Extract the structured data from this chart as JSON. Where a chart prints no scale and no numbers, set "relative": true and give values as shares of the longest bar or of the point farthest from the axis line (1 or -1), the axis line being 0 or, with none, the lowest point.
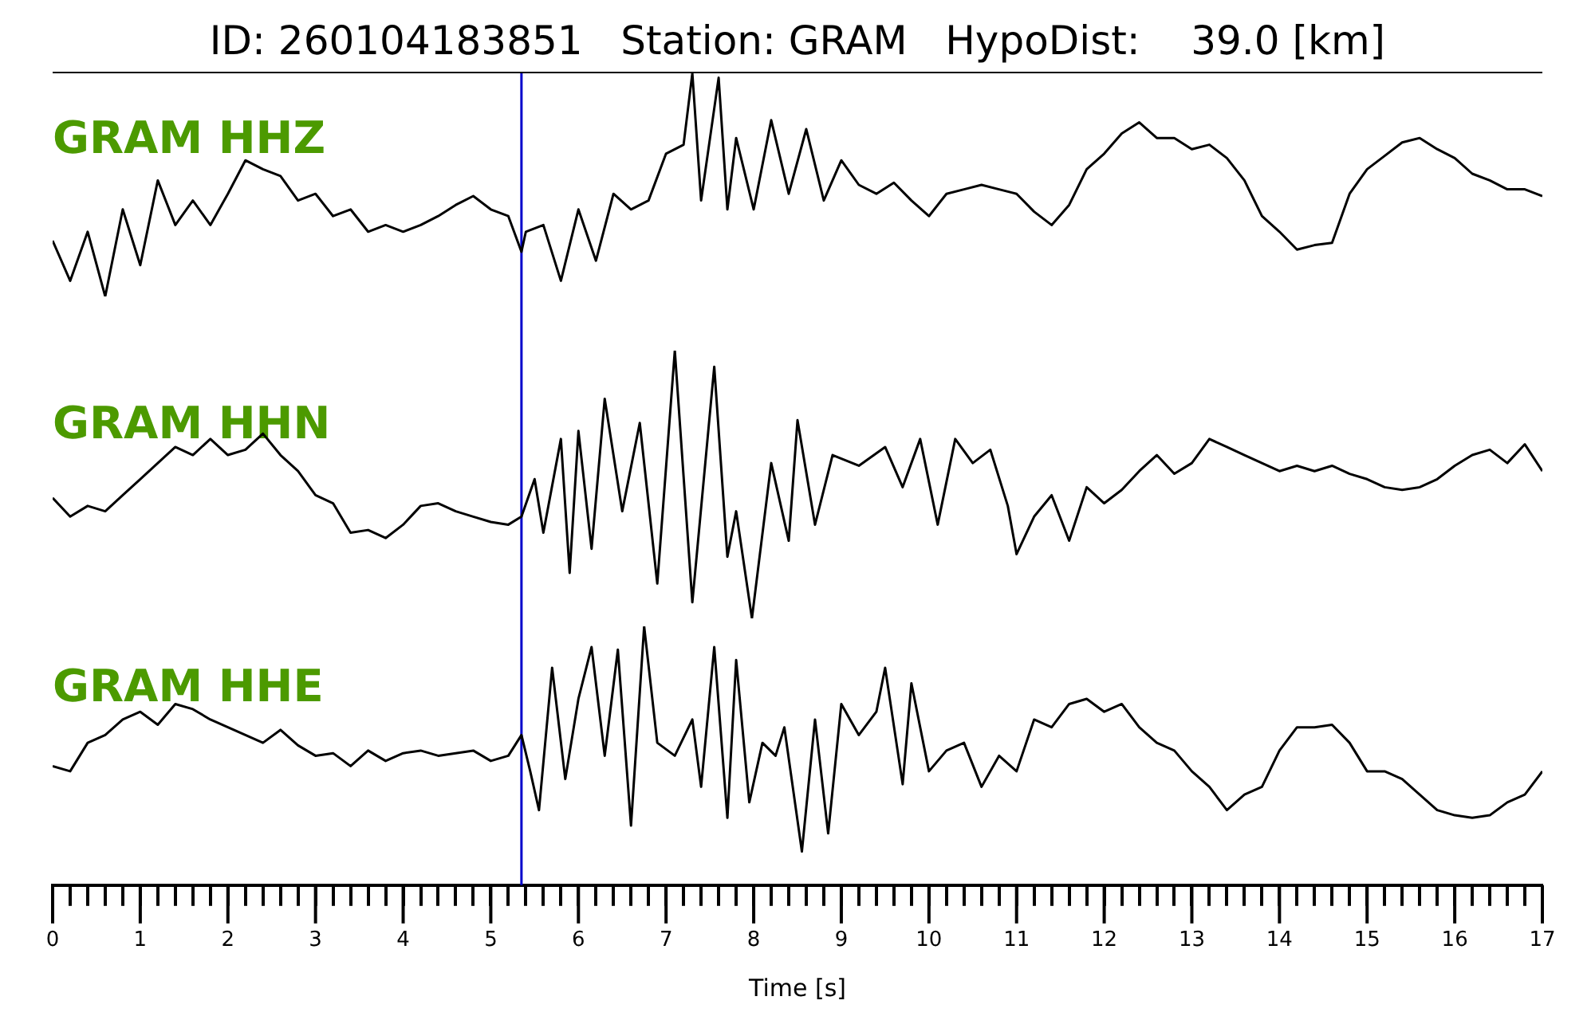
{
  "chart_data": [
    {
      "type": "line",
      "title": "ID: 260104183851   Station: GRAM   HypoDist:    39.0 [km]",
      "relative": true,
      "xlim": [
        0,
        17
      ],
      "tick_labels": false,
      "legend": false,
      "ref_lines": [
        {
          "axis": "x",
          "value": 5.35,
          "color": "#0000cc"
        }
      ],
      "series": [
        {
          "name": "GRAM HHZ",
          "color": "#000000",
          "x": [
            0,
            0.2,
            0.4,
            0.6,
            0.8,
            1.0,
            1.2,
            1.4,
            1.6,
            1.8,
            2.0,
            2.2,
            2.4,
            2.6,
            2.8,
            3.0,
            3.2,
            3.4,
            3.6,
            3.8,
            4.0,
            4.2,
            4.4,
            4.6,
            4.8,
            5.0,
            5.2,
            5.35,
            5.4,
            5.6,
            5.8,
            6.0,
            6.2,
            6.4,
            6.6,
            6.8,
            7.0,
            7.2,
            7.3,
            7.4,
            7.6,
            7.7,
            7.8,
            8.0,
            8.2,
            8.4,
            8.6,
            8.8,
            9.0,
            9.2,
            9.4,
            9.6,
            9.8,
            10.0,
            10.2,
            10.4,
            10.6,
            10.8,
            11.0,
            11.2,
            11.4,
            11.6,
            11.8,
            12.0,
            12.2,
            12.4,
            12.6,
            12.8,
            13.0,
            13.2,
            13.4,
            13.6,
            13.8,
            14.0,
            14.2,
            14.4,
            14.6,
            14.8,
            15.0,
            15.2,
            15.4,
            15.6,
            15.8,
            16.0,
            16.2,
            16.4,
            16.6,
            16.8,
            17.0
          ],
          "values": [
            0.25,
            0.07,
            0.29,
            0,
            0.39,
            0.14,
            0.52,
            0.32,
            0.43,
            0.32,
            0.46,
            0.61,
            0.57,
            0.54,
            0.43,
            0.46,
            0.36,
            0.39,
            0.29,
            0.32,
            0.29,
            0.32,
            0.36,
            0.41,
            0.45,
            0.39,
            0.36,
            0.2,
            0.29,
            0.32,
            0.07,
            0.39,
            0.16,
            0.46,
            0.39,
            0.43,
            0.64,
            0.68,
            1,
            0.43,
            0.98,
            0.39,
            0.71,
            0.39,
            0.79,
            0.46,
            0.75,
            0.43,
            0.61,
            0.5,
            0.46,
            0.51,
            0.43,
            0.36,
            0.46,
            0.48,
            0.5,
            0.48,
            0.46,
            0.38,
            0.32,
            0.41,
            0.57,
            0.64,
            0.73,
            0.78,
            0.71,
            0.71,
            0.66,
            0.68,
            0.62,
            0.52,
            0.36,
            0.29,
            0.21,
            0.23,
            0.24,
            0.46,
            0.57,
            0.63,
            0.69,
            0.71,
            0.66,
            0.62,
            0.55,
            0.52,
            0.48,
            0.48,
            0.45
          ]
        }
      ]
    },
    {
      "type": "line",
      "relative": true,
      "xlim": [
        0,
        17
      ],
      "tick_labels": false,
      "legend": false,
      "ref_lines": [
        {
          "axis": "x",
          "value": 5.35,
          "color": "#0000cc"
        }
      ],
      "series": [
        {
          "name": "GRAM HHN",
          "color": "#000000",
          "x": [
            0,
            0.2,
            0.4,
            0.6,
            0.8,
            1.0,
            1.2,
            1.4,
            1.6,
            1.8,
            2.0,
            2.2,
            2.4,
            2.6,
            2.8,
            3.0,
            3.2,
            3.4,
            3.6,
            3.8,
            4.0,
            4.2,
            4.4,
            4.6,
            4.8,
            5.0,
            5.2,
            5.35,
            5.5,
            5.6,
            5.8,
            5.9,
            6.0,
            6.15,
            6.3,
            6.5,
            6.7,
            6.9,
            7.1,
            7.3,
            7.55,
            7.7,
            7.8,
            7.98,
            8.2,
            8.4,
            8.5,
            8.7,
            8.9,
            9.2,
            9.5,
            9.7,
            9.9,
            10.1,
            10.3,
            10.5,
            10.7,
            10.9,
            11.0,
            11.2,
            11.4,
            11.6,
            11.8,
            12.0,
            12.2,
            12.4,
            12.6,
            12.8,
            13.0,
            13.2,
            13.4,
            13.6,
            13.8,
            14.0,
            14.2,
            14.4,
            14.6,
            14.8,
            15.0,
            15.2,
            15.4,
            15.6,
            15.8,
            16.0,
            16.2,
            16.4,
            16.6,
            16.8,
            17.0
          ],
          "values": [
            0.45,
            0.38,
            0.42,
            0.4,
            0.46,
            0.52,
            0.58,
            0.64,
            0.61,
            0.67,
            0.61,
            0.63,
            0.69,
            0.61,
            0.55,
            0.46,
            0.43,
            0.32,
            0.33,
            0.3,
            0.35,
            0.42,
            0.43,
            0.4,
            0.38,
            0.36,
            0.35,
            0.38,
            0.52,
            0.32,
            0.67,
            0.17,
            0.7,
            0.26,
            0.82,
            0.4,
            0.73,
            0.13,
            1,
            0.06,
            0.94,
            0.23,
            0.4,
            0,
            0.58,
            0.29,
            0.74,
            0.35,
            0.61,
            0.57,
            0.64,
            0.49,
            0.67,
            0.35,
            0.67,
            0.58,
            0.63,
            0.42,
            0.24,
            0.38,
            0.46,
            0.29,
            0.49,
            0.43,
            0.48,
            0.55,
            0.61,
            0.54,
            0.58,
            0.67,
            0.64,
            0.61,
            0.58,
            0.55,
            0.57,
            0.55,
            0.57,
            0.54,
            0.52,
            0.49,
            0.48,
            0.49,
            0.52,
            0.57,
            0.61,
            0.63,
            0.58,
            0.65,
            0.55
          ]
        }
      ]
    },
    {
      "type": "line",
      "relative": true,
      "xlim": [
        0,
        17
      ],
      "xlabel": "Time [s]",
      "tick_labels": "x",
      "legend": false,
      "xticks": [
        0,
        {
          "value": 0.2,
          "label": null
        },
        {
          "value": 0.4,
          "label": null
        },
        {
          "value": 0.6,
          "label": null
        },
        {
          "value": 0.8,
          "label": null
        },
        1,
        {
          "value": 1.2,
          "label": null
        },
        {
          "value": 1.4,
          "label": null
        },
        {
          "value": 1.6,
          "label": null
        },
        {
          "value": 1.8,
          "label": null
        },
        2,
        {
          "value": 2.2,
          "label": null
        },
        {
          "value": 2.4,
          "label": null
        },
        {
          "value": 2.6,
          "label": null
        },
        {
          "value": 2.8,
          "label": null
        },
        3,
        {
          "value": 3.2,
          "label": null
        },
        {
          "value": 3.4,
          "label": null
        },
        {
          "value": 3.6,
          "label": null
        },
        {
          "value": 3.8,
          "label": null
        },
        4,
        {
          "value": 4.2,
          "label": null
        },
        {
          "value": 4.4,
          "label": null
        },
        {
          "value": 4.6,
          "label": null
        },
        {
          "value": 4.8,
          "label": null
        },
        5,
        {
          "value": 5.2,
          "label": null
        },
        {
          "value": 5.4,
          "label": null
        },
        {
          "value": 5.6,
          "label": null
        },
        {
          "value": 5.8,
          "label": null
        },
        6,
        {
          "value": 6.2,
          "label": null
        },
        {
          "value": 6.4,
          "label": null
        },
        {
          "value": 6.6,
          "label": null
        },
        {
          "value": 6.8,
          "label": null
        },
        7,
        {
          "value": 7.2,
          "label": null
        },
        {
          "value": 7.4,
          "label": null
        },
        {
          "value": 7.6,
          "label": null
        },
        {
          "value": 7.8,
          "label": null
        },
        8,
        {
          "value": 8.2,
          "label": null
        },
        {
          "value": 8.4,
          "label": null
        },
        {
          "value": 8.6,
          "label": null
        },
        {
          "value": 8.8,
          "label": null
        },
        9,
        {
          "value": 9.2,
          "label": null
        },
        {
          "value": 9.4,
          "label": null
        },
        {
          "value": 9.6,
          "label": null
        },
        {
          "value": 9.8,
          "label": null
        },
        10,
        {
          "value": 10.2,
          "label": null
        },
        {
          "value": 10.4,
          "label": null
        },
        {
          "value": 10.6,
          "label": null
        },
        {
          "value": 10.8,
          "label": null
        },
        11,
        {
          "value": 11.2,
          "label": null
        },
        {
          "value": 11.4,
          "label": null
        },
        {
          "value": 11.6,
          "label": null
        },
        {
          "value": 11.8,
          "label": null
        },
        12,
        {
          "value": 12.2,
          "label": null
        },
        {
          "value": 12.4,
          "label": null
        },
        {
          "value": 12.6,
          "label": null
        },
        {
          "value": 12.8,
          "label": null
        },
        13,
        {
          "value": 13.2,
          "label": null
        },
        {
          "value": 13.4,
          "label": null
        },
        {
          "value": 13.6,
          "label": null
        },
        {
          "value": 13.8,
          "label": null
        },
        14,
        {
          "value": 14.2,
          "label": null
        },
        {
          "value": 14.4,
          "label": null
        },
        {
          "value": 14.6,
          "label": null
        },
        {
          "value": 14.8,
          "label": null
        },
        15,
        {
          "value": 15.2,
          "label": null
        },
        {
          "value": 15.4,
          "label": null
        },
        {
          "value": 15.6,
          "label": null
        },
        {
          "value": 15.8,
          "label": null
        },
        16,
        {
          "value": 16.2,
          "label": null
        },
        {
          "value": 16.4,
          "label": null
        },
        {
          "value": 16.6,
          "label": null
        },
        {
          "value": 16.8,
          "label": null
        },
        17
      ],
      "ref_lines": [
        {
          "axis": "x",
          "value": 5.35,
          "color": "#0000cc"
        }
      ],
      "series": [
        {
          "name": "GRAM HHE",
          "color": "#000000",
          "x": [
            0,
            0.2,
            0.4,
            0.6,
            0.8,
            1.0,
            1.2,
            1.4,
            1.6,
            1.8,
            2.0,
            2.2,
            2.4,
            2.6,
            2.8,
            3.0,
            3.2,
            3.4,
            3.6,
            3.8,
            4.0,
            4.2,
            4.4,
            4.6,
            4.8,
            5.0,
            5.2,
            5.35,
            5.45,
            5.55,
            5.7,
            5.85,
            6.0,
            6.15,
            6.3,
            6.45,
            6.6,
            6.75,
            6.9,
            7.1,
            7.3,
            7.4,
            7.55,
            7.7,
            7.8,
            7.95,
            8.1,
            8.25,
            8.35,
            8.55,
            8.7,
            8.85,
            9.0,
            9.2,
            9.4,
            9.5,
            9.7,
            9.8,
            10.0,
            10.2,
            10.4,
            10.6,
            10.8,
            11.0,
            11.2,
            11.4,
            11.6,
            11.8,
            12.0,
            12.2,
            12.4,
            12.6,
            12.8,
            13.0,
            13.2,
            13.4,
            13.6,
            13.8,
            14.0,
            14.2,
            14.4,
            14.6,
            14.8,
            15.0,
            15.2,
            15.4,
            15.6,
            15.8,
            16.0,
            16.2,
            16.4,
            16.6,
            16.8,
            17.0
          ],
          "values": [
            0.46,
            0.44,
            0.55,
            0.58,
            0.64,
            0.67,
            0.62,
            0.7,
            0.68,
            0.64,
            0.61,
            0.58,
            0.55,
            0.6,
            0.54,
            0.5,
            0.51,
            0.46,
            0.52,
            0.48,
            0.51,
            0.52,
            0.5,
            0.51,
            0.52,
            0.48,
            0.5,
            0.58,
            0.44,
            0.29,
            0.84,
            0.41,
            0.72,
            0.92,
            0.5,
            0.91,
            0.23,
            1,
            0.55,
            0.5,
            0.64,
            0.38,
            0.92,
            0.26,
            0.87,
            0.32,
            0.55,
            0.5,
            0.61,
            0.13,
            0.64,
            0.2,
            0.7,
            0.58,
            0.67,
            0.84,
            0.39,
            0.78,
            0.44,
            0.52,
            0.55,
            0.38,
            0.5,
            0.44,
            0.64,
            0.61,
            0.7,
            0.72,
            0.67,
            0.7,
            0.61,
            0.55,
            0.52,
            0.44,
            0.38,
            0.29,
            0.35,
            0.38,
            0.52,
            0.61,
            0.61,
            0.62,
            0.55,
            0.44,
            0.44,
            0.41,
            0.35,
            0.29,
            0.27,
            0.26,
            0.27,
            0.32,
            0.35,
            0.44
          ]
        }
      ]
    }
  ]
}
